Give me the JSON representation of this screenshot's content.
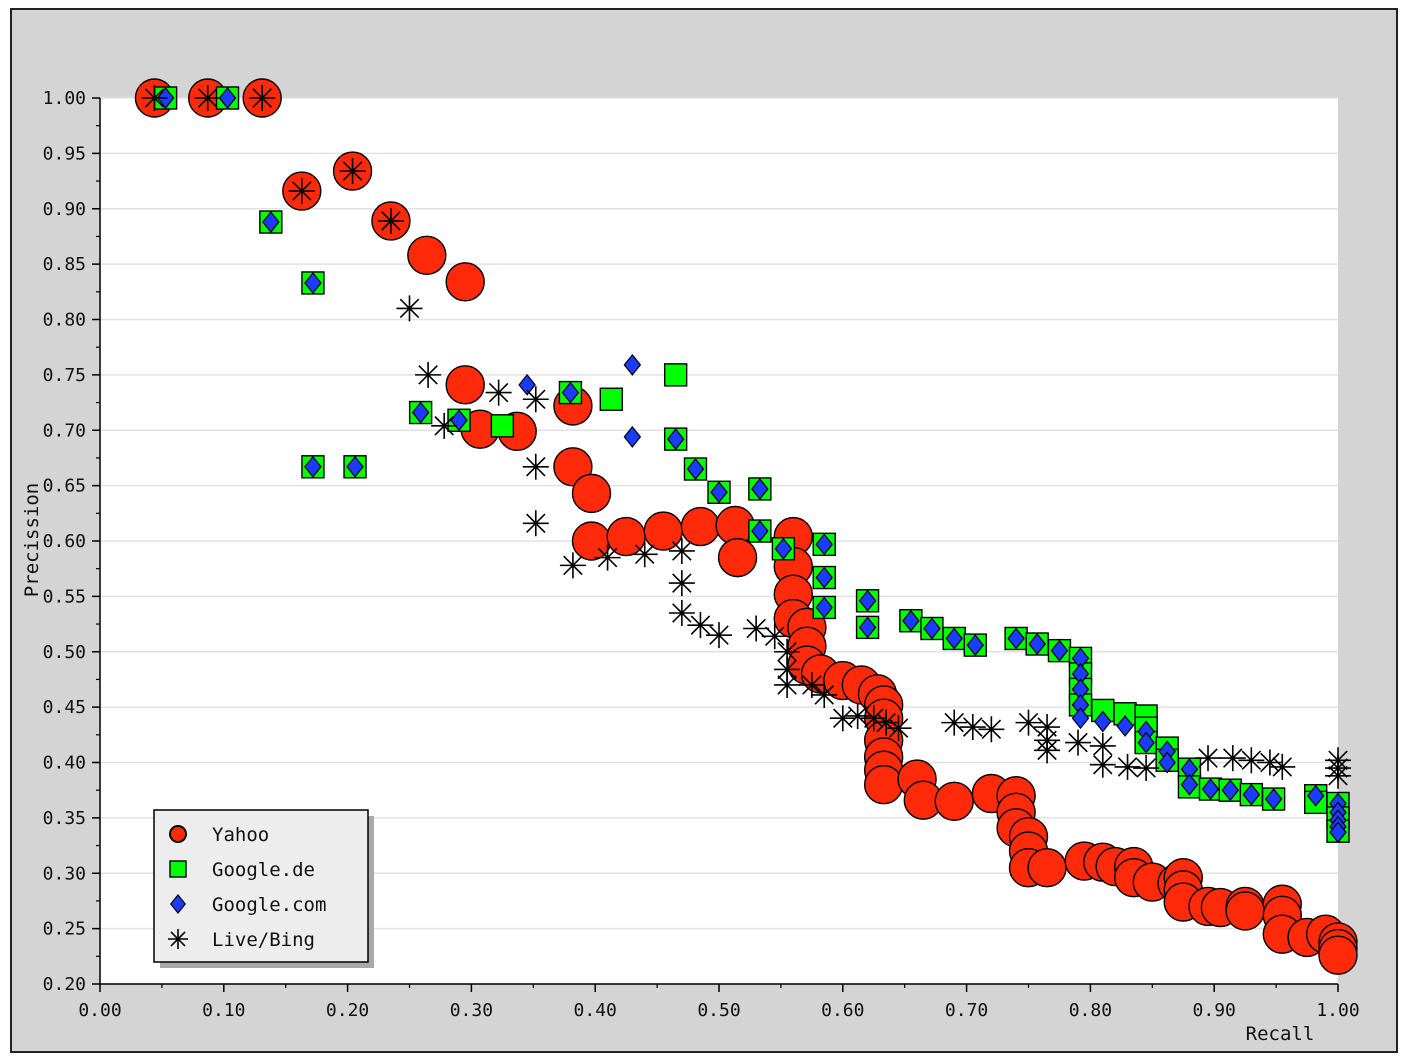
{
  "chart_data": {
    "type": "scatter",
    "xlabel": "Recall",
    "ylabel": "Precission",
    "xlim": [
      0.0,
      1.0
    ],
    "ylim": [
      0.2,
      1.0
    ],
    "x_ticks": [
      "0.00",
      "0.10",
      "0.20",
      "0.30",
      "0.40",
      "0.50",
      "0.60",
      "0.70",
      "0.80",
      "0.90",
      "1.00"
    ],
    "y_ticks": [
      "1.00",
      "0.95",
      "0.90",
      "0.85",
      "0.80",
      "0.75",
      "0.70",
      "0.65",
      "0.60",
      "0.55",
      "0.50",
      "0.45",
      "0.40",
      "0.35",
      "0.30",
      "0.25",
      "0.20"
    ],
    "grid": "horizontal",
    "legend_position": "bottom-left",
    "series": [
      {
        "name": "Yahoo",
        "marker": "circle",
        "color": "#ff2a0a",
        "points": [
          [
            0.044,
            1.0
          ],
          [
            0.087,
            1.0
          ],
          [
            0.131,
            1.0
          ],
          [
            0.163,
            0.916
          ],
          [
            0.204,
            0.934
          ],
          [
            0.235,
            0.889
          ],
          [
            0.264,
            0.858
          ],
          [
            0.295,
            0.834
          ],
          [
            0.295,
            0.741
          ],
          [
            0.307,
            0.701
          ],
          [
            0.337,
            0.699
          ],
          [
            0.382,
            0.722
          ],
          [
            0.382,
            0.667
          ],
          [
            0.397,
            0.643
          ],
          [
            0.397,
            0.6
          ],
          [
            0.425,
            0.604
          ],
          [
            0.455,
            0.609
          ],
          [
            0.485,
            0.613
          ],
          [
            0.513,
            0.614
          ],
          [
            0.515,
            0.585
          ],
          [
            0.56,
            0.604
          ],
          [
            0.56,
            0.577
          ],
          [
            0.56,
            0.552
          ],
          [
            0.56,
            0.53
          ],
          [
            0.571,
            0.522
          ],
          [
            0.571,
            0.505
          ],
          [
            0.571,
            0.488
          ],
          [
            0.582,
            0.48
          ],
          [
            0.6,
            0.474
          ],
          [
            0.615,
            0.47
          ],
          [
            0.628,
            0.462
          ],
          [
            0.633,
            0.452
          ],
          [
            0.633,
            0.44
          ],
          [
            0.633,
            0.42
          ],
          [
            0.633,
            0.405
          ],
          [
            0.633,
            0.393
          ],
          [
            0.633,
            0.38
          ],
          [
            0.66,
            0.385
          ],
          [
            0.665,
            0.366
          ],
          [
            0.69,
            0.365
          ],
          [
            0.72,
            0.372
          ],
          [
            0.74,
            0.37
          ],
          [
            0.74,
            0.355
          ],
          [
            0.74,
            0.341
          ],
          [
            0.75,
            0.333
          ],
          [
            0.75,
            0.32
          ],
          [
            0.75,
            0.305
          ],
          [
            0.765,
            0.305
          ],
          [
            0.795,
            0.311
          ],
          [
            0.81,
            0.31
          ],
          [
            0.82,
            0.306
          ],
          [
            0.835,
            0.306
          ],
          [
            0.835,
            0.296
          ],
          [
            0.85,
            0.292
          ],
          [
            0.87,
            0.291
          ],
          [
            0.875,
            0.296
          ],
          [
            0.875,
            0.285
          ],
          [
            0.875,
            0.274
          ],
          [
            0.895,
            0.27
          ],
          [
            0.905,
            0.269
          ],
          [
            0.925,
            0.27
          ],
          [
            0.925,
            0.266
          ],
          [
            0.955,
            0.272
          ],
          [
            0.955,
            0.262
          ],
          [
            0.955,
            0.245
          ],
          [
            0.975,
            0.242
          ],
          [
            0.99,
            0.245
          ],
          [
            1.0,
            0.238
          ],
          [
            1.0,
            0.232
          ],
          [
            1.0,
            0.226
          ]
        ]
      },
      {
        "name": "Google.de",
        "marker": "square",
        "color": "#00ff00",
        "points": [
          [
            0.053,
            1.0
          ],
          [
            0.103,
            1.0
          ],
          [
            0.138,
            0.888
          ],
          [
            0.172,
            0.833
          ],
          [
            0.172,
            0.667
          ],
          [
            0.206,
            0.667
          ],
          [
            0.259,
            0.716
          ],
          [
            0.29,
            0.709
          ],
          [
            0.325,
            0.704
          ],
          [
            0.38,
            0.734
          ],
          [
            0.413,
            0.728
          ],
          [
            0.465,
            0.75
          ],
          [
            0.465,
            0.692
          ],
          [
            0.481,
            0.665
          ],
          [
            0.5,
            0.644
          ],
          [
            0.533,
            0.647
          ],
          [
            0.533,
            0.609
          ],
          [
            0.552,
            0.593
          ],
          [
            0.585,
            0.597
          ],
          [
            0.585,
            0.567
          ],
          [
            0.585,
            0.54
          ],
          [
            0.62,
            0.546
          ],
          [
            0.62,
            0.522
          ],
          [
            0.655,
            0.528
          ],
          [
            0.672,
            0.521
          ],
          [
            0.69,
            0.512
          ],
          [
            0.707,
            0.506
          ],
          [
            0.74,
            0.512
          ],
          [
            0.757,
            0.507
          ],
          [
            0.775,
            0.501
          ],
          [
            0.792,
            0.494
          ],
          [
            0.792,
            0.48
          ],
          [
            0.792,
            0.466
          ],
          [
            0.792,
            0.452
          ],
          [
            0.81,
            0.447
          ],
          [
            0.828,
            0.444
          ],
          [
            0.845,
            0.442
          ],
          [
            0.845,
            0.431
          ],
          [
            0.845,
            0.418
          ],
          [
            0.862,
            0.413
          ],
          [
            0.862,
            0.402
          ],
          [
            0.88,
            0.394
          ],
          [
            0.88,
            0.378
          ],
          [
            0.897,
            0.376
          ],
          [
            0.913,
            0.375
          ],
          [
            0.93,
            0.371
          ],
          [
            0.948,
            0.367
          ],
          [
            0.982,
            0.37
          ],
          [
            0.982,
            0.364
          ],
          [
            1.0,
            0.363
          ],
          [
            1.0,
            0.35
          ],
          [
            1.0,
            0.338
          ]
        ]
      },
      {
        "name": "Google.com",
        "marker": "diamond",
        "color": "#1a3cff",
        "points": [
          [
            0.053,
            1.0
          ],
          [
            0.103,
            1.0
          ],
          [
            0.138,
            0.888
          ],
          [
            0.172,
            0.833
          ],
          [
            0.172,
            0.667
          ],
          [
            0.206,
            0.667
          ],
          [
            0.259,
            0.716
          ],
          [
            0.29,
            0.709
          ],
          [
            0.345,
            0.741
          ],
          [
            0.38,
            0.734
          ],
          [
            0.43,
            0.759
          ],
          [
            0.43,
            0.694
          ],
          [
            0.465,
            0.692
          ],
          [
            0.481,
            0.665
          ],
          [
            0.5,
            0.644
          ],
          [
            0.533,
            0.647
          ],
          [
            0.533,
            0.609
          ],
          [
            0.552,
            0.593
          ],
          [
            0.585,
            0.597
          ],
          [
            0.585,
            0.567
          ],
          [
            0.585,
            0.54
          ],
          [
            0.62,
            0.546
          ],
          [
            0.62,
            0.522
          ],
          [
            0.655,
            0.528
          ],
          [
            0.672,
            0.521
          ],
          [
            0.69,
            0.512
          ],
          [
            0.707,
            0.506
          ],
          [
            0.74,
            0.512
          ],
          [
            0.757,
            0.507
          ],
          [
            0.775,
            0.501
          ],
          [
            0.792,
            0.494
          ],
          [
            0.792,
            0.48
          ],
          [
            0.792,
            0.466
          ],
          [
            0.792,
            0.452
          ],
          [
            0.792,
            0.44
          ],
          [
            0.81,
            0.437
          ],
          [
            0.828,
            0.433
          ],
          [
            0.845,
            0.428
          ],
          [
            0.845,
            0.418
          ],
          [
            0.862,
            0.41
          ],
          [
            0.862,
            0.4
          ],
          [
            0.88,
            0.394
          ],
          [
            0.88,
            0.38
          ],
          [
            0.897,
            0.376
          ],
          [
            0.913,
            0.375
          ],
          [
            0.93,
            0.371
          ],
          [
            0.948,
            0.367
          ],
          [
            0.982,
            0.37
          ],
          [
            1.0,
            0.363
          ],
          [
            1.0,
            0.355
          ],
          [
            1.0,
            0.348
          ],
          [
            1.0,
            0.342
          ],
          [
            1.0,
            0.337
          ]
        ]
      },
      {
        "name": "Live/Bing",
        "marker": "star",
        "color": "#000000",
        "points": [
          [
            0.044,
            1.0
          ],
          [
            0.087,
            1.0
          ],
          [
            0.131,
            1.0
          ],
          [
            0.163,
            0.916
          ],
          [
            0.204,
            0.934
          ],
          [
            0.235,
            0.889
          ],
          [
            0.25,
            0.81
          ],
          [
            0.265,
            0.75
          ],
          [
            0.278,
            0.704
          ],
          [
            0.322,
            0.734
          ],
          [
            0.352,
            0.728
          ],
          [
            0.352,
            0.667
          ],
          [
            0.352,
            0.616
          ],
          [
            0.382,
            0.578
          ],
          [
            0.41,
            0.585
          ],
          [
            0.44,
            0.588
          ],
          [
            0.47,
            0.591
          ],
          [
            0.47,
            0.562
          ],
          [
            0.47,
            0.535
          ],
          [
            0.485,
            0.524
          ],
          [
            0.5,
            0.515
          ],
          [
            0.53,
            0.521
          ],
          [
            0.545,
            0.514
          ],
          [
            0.555,
            0.5
          ],
          [
            0.555,
            0.484
          ],
          [
            0.555,
            0.47
          ],
          [
            0.575,
            0.47
          ],
          [
            0.585,
            0.461
          ],
          [
            0.6,
            0.44
          ],
          [
            0.612,
            0.442
          ],
          [
            0.625,
            0.44
          ],
          [
            0.635,
            0.436
          ],
          [
            0.645,
            0.431
          ],
          [
            0.69,
            0.436
          ],
          [
            0.705,
            0.432
          ],
          [
            0.72,
            0.43
          ],
          [
            0.75,
            0.436
          ],
          [
            0.765,
            0.432
          ],
          [
            0.765,
            0.42
          ],
          [
            0.765,
            0.411
          ],
          [
            0.79,
            0.418
          ],
          [
            0.81,
            0.415
          ],
          [
            0.81,
            0.398
          ],
          [
            0.83,
            0.396
          ],
          [
            0.845,
            0.395
          ],
          [
            0.895,
            0.404
          ],
          [
            0.915,
            0.404
          ],
          [
            0.93,
            0.402
          ],
          [
            0.945,
            0.4
          ],
          [
            0.955,
            0.396
          ],
          [
            1.0,
            0.402
          ],
          [
            1.0,
            0.395
          ],
          [
            1.0,
            0.388
          ]
        ]
      }
    ]
  }
}
